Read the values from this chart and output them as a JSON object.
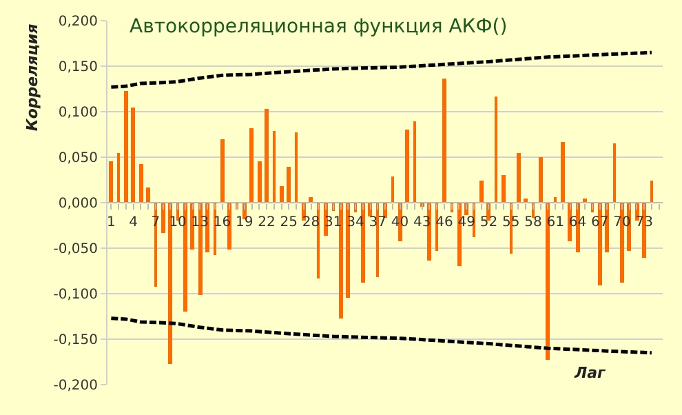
{
  "chart_data": {
    "type": "bar",
    "title": "Автокорреляционная функция АКФ()",
    "xlabel": "Лаг",
    "ylabel": "Корреляция",
    "x": [
      1,
      2,
      3,
      4,
      5,
      6,
      7,
      8,
      9,
      10,
      11,
      12,
      13,
      14,
      15,
      16,
      17,
      18,
      19,
      20,
      21,
      22,
      23,
      24,
      25,
      26,
      27,
      28,
      29,
      30,
      31,
      32,
      33,
      34,
      35,
      36,
      37,
      38,
      39,
      40,
      41,
      42,
      43,
      44,
      45,
      46,
      47,
      48,
      49,
      50,
      51,
      52,
      53,
      54,
      55,
      56,
      57,
      58,
      59,
      60,
      61,
      62,
      63,
      64,
      65,
      66,
      67,
      68,
      69,
      70,
      71,
      72,
      73,
      74,
      75
    ],
    "series": [
      {
        "color": "#ff6a00",
        "values": [
          0.046,
          0.055,
          0.122,
          0.105,
          0.042,
          0.016,
          -0.092,
          -0.033,
          -0.177,
          -0.02,
          -0.119,
          -0.052,
          -0.101,
          -0.054,
          -0.058,
          0.069,
          -0.052,
          -0.008,
          -0.018,
          0.082,
          0.045,
          0.103,
          0.079,
          0.018,
          0.04,
          0.077,
          -0.02,
          0.006,
          -0.083,
          -0.036,
          -0.009,
          -0.128,
          -0.104,
          -0.01,
          -0.088,
          -0.015,
          -0.082,
          -0.017,
          0.029,
          -0.042,
          0.08,
          0.09,
          -0.005,
          -0.064,
          -0.053,
          0.137,
          -0.01,
          -0.07,
          -0.014,
          -0.038,
          0.025,
          -0.019,
          0.117,
          0.03,
          -0.056,
          0.055,
          0.005,
          -0.017,
          0.05,
          -0.173,
          0.006,
          0.067,
          -0.043,
          -0.054,
          0.005,
          -0.01,
          -0.091,
          -0.055,
          0.065,
          -0.088,
          -0.053,
          -0.019,
          -0.06,
          0.025,
          0
        ]
      },
      {
        "type": "line",
        "color": "#000000",
        "line_style": "dashed",
        "x": [
          1,
          3,
          5,
          8,
          10,
          13,
          16,
          20,
          25,
          31,
          40,
          46,
          52,
          60,
          68,
          74
        ],
        "values": [
          0.127,
          0.128,
          0.131,
          0.132,
          0.133,
          0.137,
          0.14,
          0.141,
          0.144,
          0.147,
          0.149,
          0.152,
          0.155,
          0.16,
          0.163,
          0.165
        ]
      },
      {
        "type": "line",
        "color": "#000000",
        "line_style": "dashed",
        "x": [
          1,
          3,
          5,
          8,
          10,
          13,
          16,
          20,
          25,
          31,
          40,
          46,
          52,
          60,
          68,
          74
        ],
        "values": [
          -0.127,
          -0.128,
          -0.131,
          -0.132,
          -0.133,
          -0.137,
          -0.14,
          -0.141,
          -0.144,
          -0.147,
          -0.149,
          -0.152,
          -0.155,
          -0.16,
          -0.163,
          -0.165
        ]
      }
    ],
    "xlim": [
      0.5,
      75.5
    ],
    "xticks": [
      1,
      {
        "value": 2,
        "label": null
      },
      {
        "value": 3,
        "label": null
      },
      4,
      {
        "value": 5,
        "label": null
      },
      {
        "value": 6,
        "label": null
      },
      7,
      {
        "value": 8,
        "label": null
      },
      {
        "value": 9,
        "label": null
      },
      10,
      {
        "value": 11,
        "label": null
      },
      {
        "value": 12,
        "label": null
      },
      13,
      {
        "value": 14,
        "label": null
      },
      {
        "value": 15,
        "label": null
      },
      16,
      {
        "value": 17,
        "label": null
      },
      {
        "value": 18,
        "label": null
      },
      19,
      {
        "value": 20,
        "label": null
      },
      {
        "value": 21,
        "label": null
      },
      22,
      {
        "value": 23,
        "label": null
      },
      {
        "value": 24,
        "label": null
      },
      25,
      {
        "value": 26,
        "label": null
      },
      {
        "value": 27,
        "label": null
      },
      28,
      {
        "value": 29,
        "label": null
      },
      {
        "value": 30,
        "label": null
      },
      31,
      {
        "value": 32,
        "label": null
      },
      {
        "value": 33,
        "label": null
      },
      34,
      {
        "value": 35,
        "label": null
      },
      {
        "value": 36,
        "label": null
      },
      37,
      {
        "value": 38,
        "label": null
      },
      {
        "value": 39,
        "label": null
      },
      40,
      {
        "value": 41,
        "label": null
      },
      {
        "value": 42,
        "label": null
      },
      43,
      {
        "value": 44,
        "label": null
      },
      {
        "value": 45,
        "label": null
      },
      46,
      {
        "value": 47,
        "label": null
      },
      {
        "value": 48,
        "label": null
      },
      49,
      {
        "value": 50,
        "label": null
      },
      {
        "value": 51,
        "label": null
      },
      52,
      {
        "value": 53,
        "label": null
      },
      {
        "value": 54,
        "label": null
      },
      55,
      {
        "value": 56,
        "label": null
      },
      {
        "value": 57,
        "label": null
      },
      58,
      {
        "value": 59,
        "label": null
      },
      {
        "value": 60,
        "label": null
      },
      61,
      {
        "value": 62,
        "label": null
      },
      {
        "value": 63,
        "label": null
      },
      64,
      {
        "value": 65,
        "label": null
      },
      {
        "value": 66,
        "label": null
      },
      67,
      {
        "value": 68,
        "label": null
      },
      {
        "value": 69,
        "label": null
      },
      70,
      {
        "value": 71,
        "label": null
      },
      {
        "value": 72,
        "label": null
      },
      73,
      {
        "value": 74,
        "label": null
      },
      {
        "value": 75,
        "label": null
      }
    ],
    "ylim": [
      -0.2,
      0.2
    ],
    "yticks": [
      {
        "value": -0.2,
        "label": "-0,200"
      },
      {
        "value": -0.15,
        "label": "-0,150"
      },
      {
        "value": -0.1,
        "label": "-0,100"
      },
      {
        "value": -0.05,
        "label": "-0,050"
      },
      {
        "value": 0,
        "label": "0,000"
      },
      {
        "value": 0.05,
        "label": "0,050"
      },
      {
        "value": 0.1,
        "label": "0,100"
      },
      {
        "value": 0.15,
        "label": "0,150"
      },
      {
        "value": 0.2,
        "label": "0,200"
      }
    ],
    "grid": "y"
  }
}
